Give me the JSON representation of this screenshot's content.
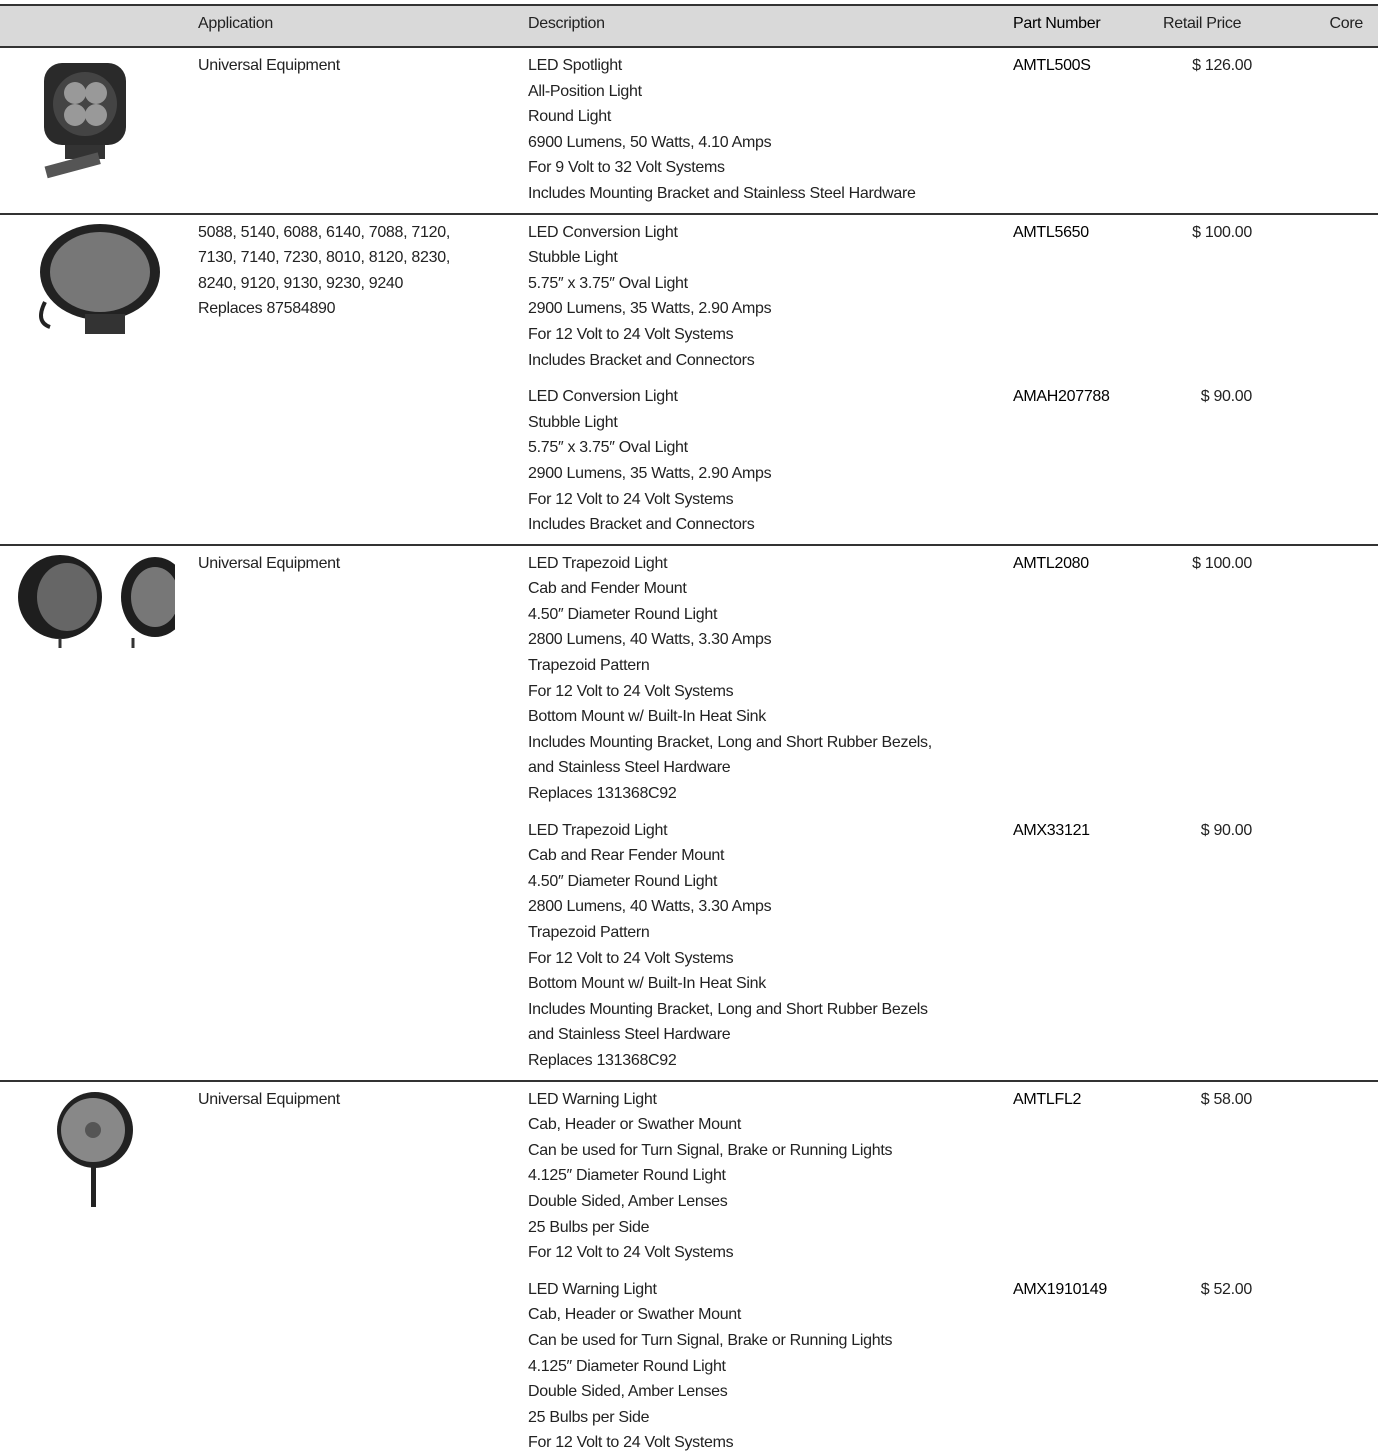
{
  "table": {
    "columns": [
      "Application",
      "Description",
      "Part Number",
      "Retail Price",
      "Core"
    ],
    "groups": [
      {
        "application": [
          "Universal Equipment"
        ],
        "items": [
          {
            "description": [
              "LED Spotlight",
              "All-Position Light",
              "Round Light",
              "6900 Lumens, 50 Watts, 4.10 Amps",
              "For 9 Volt to 32 Volt Systems",
              "Includes Mounting Bracket and Stainless Steel Hardware"
            ],
            "part_number": "AMTL500S",
            "price": "$ 126.00"
          }
        ]
      },
      {
        "application": [
          "5088, 5140, 6088, 6140, 7088, 7120,",
          "7130, 7140, 7230, 8010, 8120, 8230,",
          "8240, 9120, 9130, 9230, 9240",
          "Replaces 87584890"
        ],
        "items": [
          {
            "description": [
              "LED Conversion Light",
              "Stubble Light",
              "5.75″ x 3.75″ Oval Light",
              "2900 Lumens, 35 Watts, 2.90 Amps",
              "For 12 Volt to 24 Volt Systems",
              "Includes Bracket and Connectors"
            ],
            "part_number": "AMTL5650",
            "price": "$ 100.00"
          },
          {
            "description": [
              "LED Conversion Light",
              "Stubble Light",
              "5.75″ x 3.75″ Oval Light",
              "2900 Lumens, 35 Watts, 2.90 Amps",
              "For 12 Volt to 24 Volt Systems",
              "Includes Bracket and Connectors"
            ],
            "part_number": "AMAH207788",
            "price": "$ 90.00"
          }
        ]
      },
      {
        "application": [
          "Universal Equipment"
        ],
        "items": [
          {
            "description": [
              "LED Trapezoid Light",
              "Cab and Fender Mount",
              "4.50″ Diameter Round Light",
              "2800 Lumens, 40 Watts, 3.30 Amps",
              "Trapezoid Pattern",
              "For 12 Volt to 24 Volt Systems",
              "Bottom Mount w/ Built-In Heat Sink",
              "Includes Mounting Bracket, Long and Short Rubber Bezels,",
              "and Stainless Steel Hardware",
              "Replaces 131368C92"
            ],
            "part_number": "AMTL2080",
            "price": "$ 100.00"
          },
          {
            "description": [
              "LED Trapezoid Light",
              "Cab and Rear Fender Mount",
              "4.50″ Diameter Round Light",
              "2800 Lumens, 40 Watts, 3.30 Amps",
              "Trapezoid Pattern",
              "For 12 Volt to 24 Volt Systems",
              "Bottom Mount w/ Built-In Heat Sink",
              "Includes Mounting Bracket, Long and Short Rubber Bezels",
              "and Stainless Steel Hardware",
              "Replaces 131368C92"
            ],
            "part_number": "AMX33121",
            "price": "$ 90.00"
          }
        ]
      },
      {
        "application": [
          "Universal Equipment"
        ],
        "items": [
          {
            "description": [
              "LED Warning Light",
              "Cab, Header or Swather Mount",
              "Can be used for Turn Signal, Brake or Running Lights",
              "4.125″ Diameter Round Light",
              "Double Sided, Amber Lenses",
              "25 Bulbs per Side",
              "For 12 Volt to 24 Volt Systems"
            ],
            "part_number": "AMTLFL2",
            "price": "$ 58.00"
          },
          {
            "description": [
              "LED Warning Light",
              "Cab, Header or Swather Mount",
              "Can be used for Turn Signal, Brake or Running Lights",
              "4.125″ Diameter Round Light",
              "Double Sided, Amber Lenses",
              "25 Bulbs per Side",
              "For 12 Volt to 24 Volt Systems"
            ],
            "part_number": "AMX1910149",
            "price": "$ 52.00"
          }
        ]
      }
    ]
  }
}
